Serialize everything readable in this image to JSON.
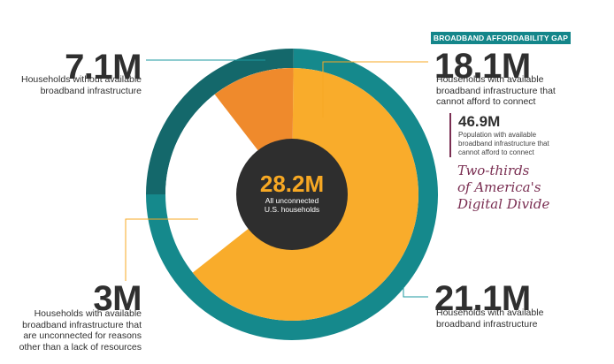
{
  "chart_data": {
    "type": "pie",
    "style": "donut",
    "outer_ring": {
      "series": [
        {
          "name": "Households without available broadband infrastructure",
          "value": 7.1,
          "color": "#14686b"
        },
        {
          "name": "Households with available broadband infrastructure",
          "value": 21.1,
          "color": "#15898c"
        }
      ]
    },
    "inner_pie": {
      "series": [
        {
          "name": "Households with available broadband infrastructure that cannot afford to connect",
          "value": 18.1,
          "color": "#f9ac2b"
        },
        {
          "name": "Households with available broadband infrastructure that are unconnected for reasons other than a lack of resources",
          "value": 3,
          "color": "#ef8a2c"
        }
      ]
    },
    "center": {
      "value": "28.2M",
      "label_line1": "All unconnected",
      "label_line2": "U.S. households"
    },
    "callouts": [
      {
        "value": "7.1M",
        "line1": "Households without available",
        "line2": "broadband infrastructure"
      },
      {
        "value": "18.1M",
        "line1": "Households with available",
        "line2": "broadband infrastructure that",
        "line3": "cannot afford to connect"
      },
      {
        "value": "3M",
        "line1": "Households with available",
        "line2": "broadband infrastructure that",
        "line3": "are unconnected for reasons",
        "line4": "other than a lack of resources"
      },
      {
        "value": "21.1M",
        "line1": "Households with available",
        "line2": "broadband infrastructure"
      }
    ],
    "badge": "BROADBAND AFFORDABILITY GAP",
    "population": {
      "value": "46.9M",
      "line1": "Population with available",
      "line2": "broadband infrastructure that",
      "line3": "cannot afford to connect"
    },
    "tagline": {
      "line1": "Two-thirds",
      "line2": "of America's",
      "line3": "Digital Divide"
    },
    "colors": {
      "center": "#2e2e2e",
      "accent": "#f7a823",
      "tagline": "#7a2e52",
      "badge": "#14868a",
      "leader_teal": "#1d9aa0",
      "leader_orange": "#f7a823"
    }
  }
}
